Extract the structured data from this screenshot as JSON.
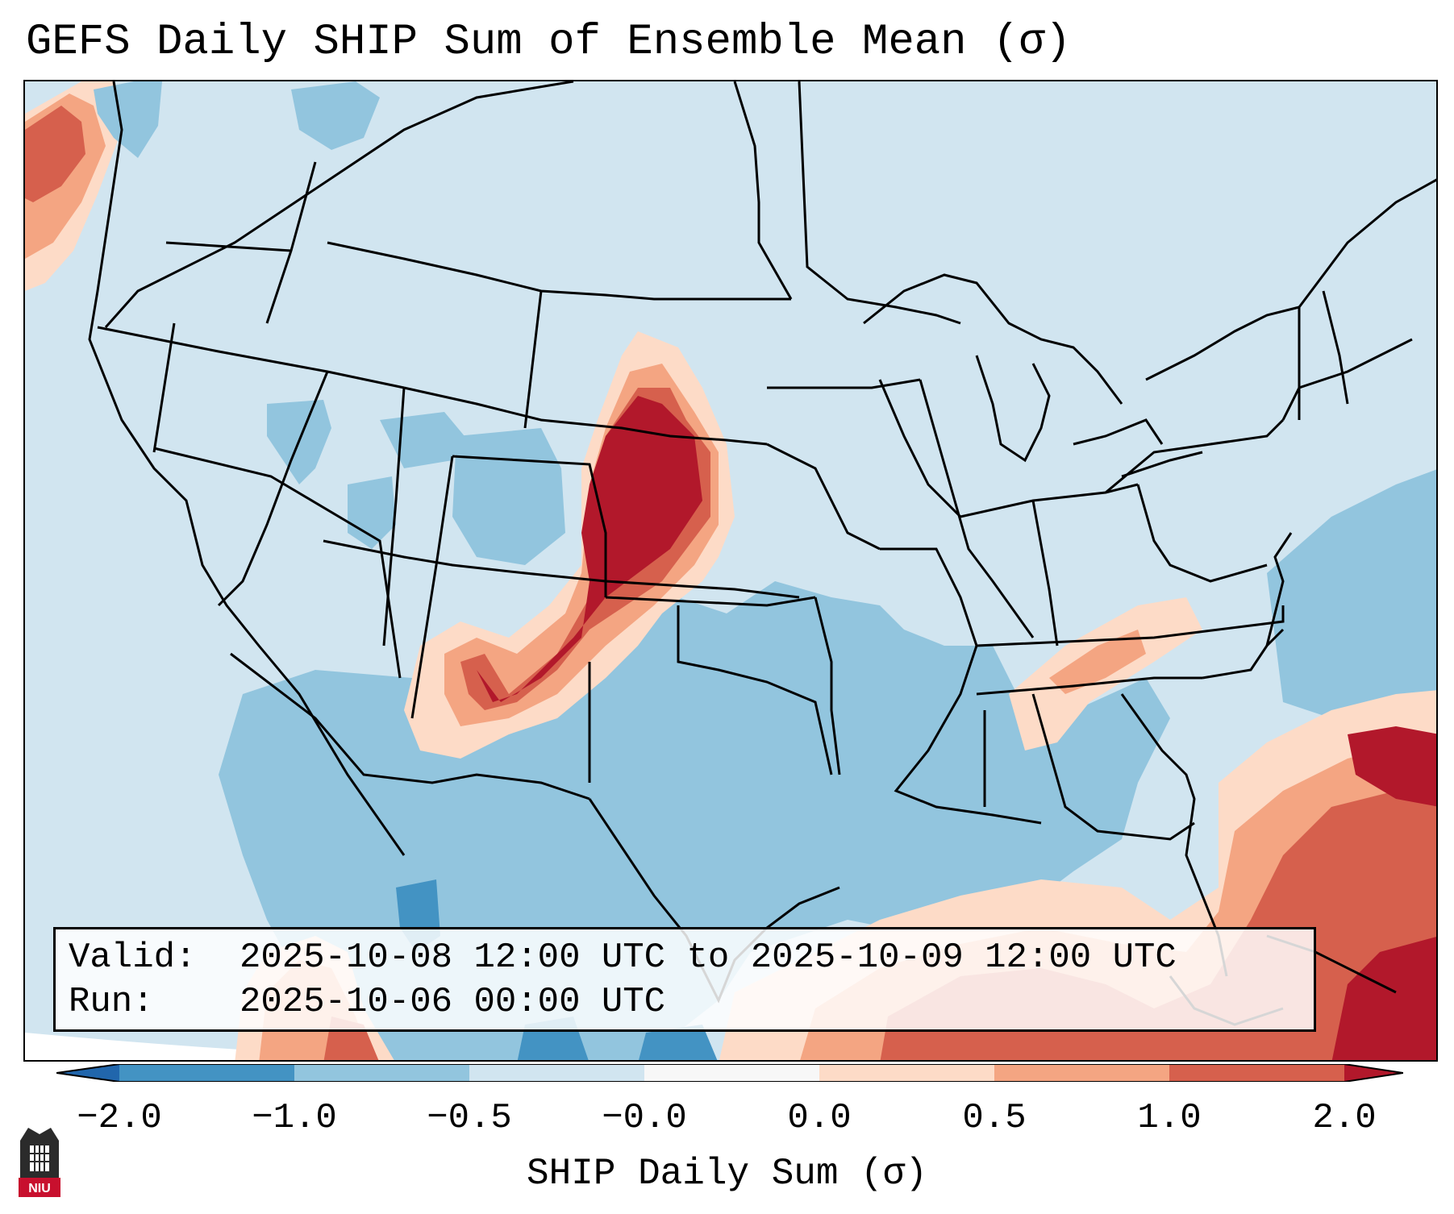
{
  "title": "GEFS Daily SHIP Sum of Ensemble Mean (σ)",
  "info": {
    "valid_label": "Valid:",
    "valid_value": "2025-10-08 12:00 UTC to 2025-10-09 12:00 UTC",
    "run_label": "Run:",
    "run_value": "2025-10-06 00:00 UTC"
  },
  "colorbar": {
    "label": "SHIP Daily Sum (σ)",
    "ticks": [
      "−2.0",
      "−1.0",
      "−0.5",
      "−0.0",
      "0.0",
      "0.5",
      "1.0",
      "2.0"
    ],
    "colors": [
      "#4393c3",
      "#92c5de",
      "#d1e5f0",
      "#f7f7f7",
      "#fddbc7",
      "#f4a582",
      "#d6604d",
      "#b2182b"
    ],
    "under_color": "#2166ac",
    "over_color": "#b2182b"
  },
  "logo": {
    "text": "NIU",
    "icon": "niu-castle-logo"
  }
}
